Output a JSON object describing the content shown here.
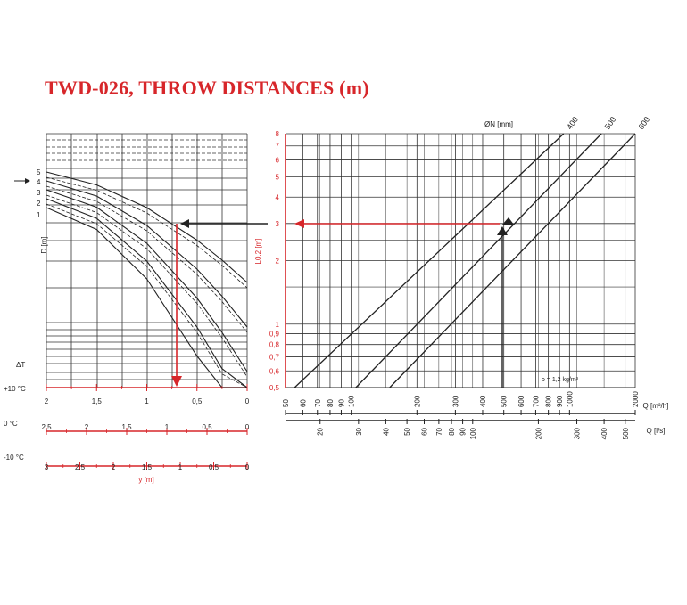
{
  "title": "TWD-026, THROW DISTANCES (m)",
  "colors": {
    "accent": "#d7262a",
    "ink": "#222222",
    "grid": "#333333"
  },
  "chart_data": [
    {
      "type": "line",
      "name_hint": "left",
      "ylabel": "D [m]",
      "d_labels": [
        "1",
        "2",
        "3",
        "4",
        "5"
      ],
      "delta_t_label": "ΔT",
      "x_scales": [
        {
          "label": "+10 °C",
          "ticks": [
            "2",
            "1,5",
            "1",
            "0,5",
            "0"
          ]
        },
        {
          "label": "0 °C",
          "ticks": [
            "2,5",
            "2",
            "1,5",
            "1",
            "0,5",
            "0"
          ]
        },
        {
          "label": "-10 °C",
          "ticks": [
            "3",
            "2,5",
            "2",
            "1,5",
            "1",
            "0,5",
            "0"
          ]
        }
      ],
      "xlabel": "y [m]",
      "xlim": [
        2,
        0
      ],
      "series": [
        {
          "x": [
            2,
            1.5,
            1,
            0.5,
            0.25,
            0
          ],
          "y": [
            5,
            4.5,
            3.6,
            2.7,
            2.4,
            2.1
          ]
        },
        {
          "x": [
            2,
            1.5,
            1,
            0.5,
            0.25,
            0
          ],
          "y": [
            4,
            3.6,
            3.1,
            2.4,
            2.1,
            1.7
          ]
        },
        {
          "x": [
            2,
            1.5,
            1,
            0.5,
            0.25,
            0
          ],
          "y": [
            3,
            2.8,
            2.4,
            1.8,
            1.5,
            1.2
          ]
        },
        {
          "x": [
            2,
            1.5,
            1,
            0.5,
            0.25,
            0
          ],
          "y": [
            2,
            1.9,
            1.7,
            1.2,
            1.0,
            0.7
          ]
        },
        {
          "x": [
            2,
            1.5,
            1,
            0.5,
            0.25,
            0
          ],
          "y": [
            1,
            0.95,
            0.8,
            0.5,
            0.35,
            0.1
          ]
        }
      ]
    },
    {
      "type": "line",
      "name_hint": "right",
      "ylabel": "L0,2 [m]",
      "ylim": [
        0.5,
        8
      ],
      "y_ticks": [
        "0,5",
        "0,6",
        "0,7",
        "0,8",
        "0,9",
        "1",
        "2",
        "3",
        "4",
        "5",
        "6",
        "7",
        "8"
      ],
      "y_tick_values": [
        0.5,
        0.6,
        0.7,
        0.8,
        0.9,
        1,
        2,
        3,
        4,
        5,
        6,
        7,
        8
      ],
      "x_scale_top": {
        "label": "Q [m³/h]",
        "ticks": [
          "50",
          "60",
          "70",
          "80",
          "90",
          "100",
          "200",
          "300",
          "400",
          "500",
          "600",
          "700",
          "800",
          "900",
          "1000",
          "2000"
        ]
      },
      "x_scale_bottom": {
        "label": "Q [l/s]",
        "ticks": [
          "20",
          "30",
          "40",
          "50",
          "60",
          "70",
          "80",
          "90",
          "100",
          "200",
          "300",
          "400",
          "500"
        ]
      },
      "xlim": [
        50,
        2000
      ],
      "legend_title": "ØN [mm]",
      "series": [
        {
          "name": "400",
          "x": [
            55,
            940
          ],
          "y": [
            0.5,
            8
          ]
        },
        {
          "name": "500",
          "x": [
            105,
            1400
          ],
          "y": [
            0.5,
            8
          ]
        },
        {
          "name": "600",
          "x": [
            150,
            2000
          ],
          "y": [
            0.5,
            8
          ]
        }
      ],
      "annotation": "ρ = 1,2 kg/m³"
    }
  ]
}
